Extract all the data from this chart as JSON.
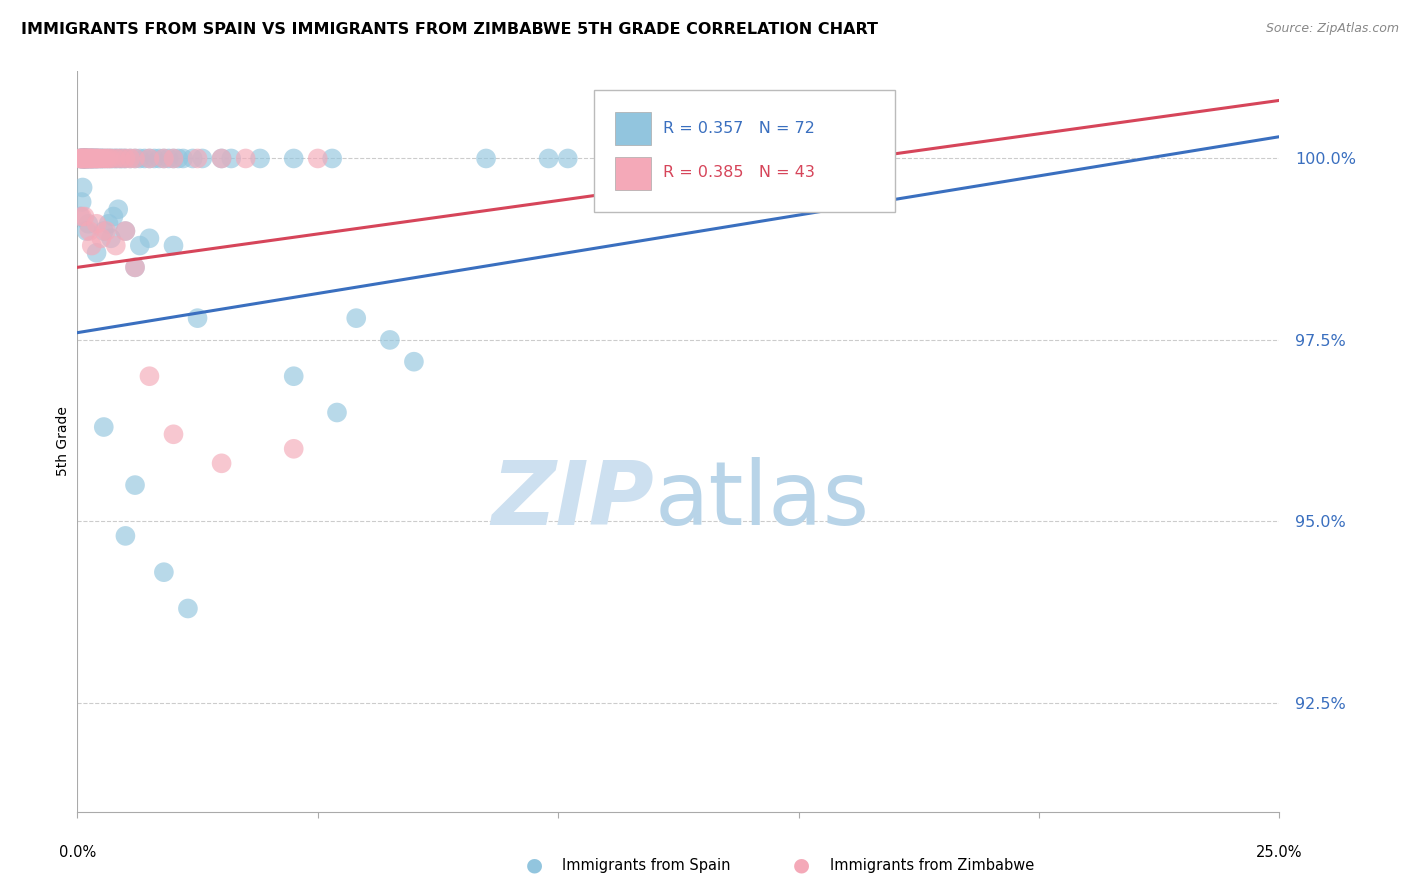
{
  "title": "IMMIGRANTS FROM SPAIN VS IMMIGRANTS FROM ZIMBABWE 5TH GRADE CORRELATION CHART",
  "source": "Source: ZipAtlas.com",
  "ylabel": "5th Grade",
  "yticks": [
    92.5,
    95.0,
    97.5,
    100.0
  ],
  "ytick_labels": [
    "92.5%",
    "95.0%",
    "97.5%",
    "100.0%"
  ],
  "xlim": [
    0.0,
    25.0
  ],
  "ylim": [
    91.0,
    101.2
  ],
  "legend_blue_r": "R = 0.357",
  "legend_blue_n": "N = 72",
  "legend_pink_r": "R = 0.385",
  "legend_pink_n": "N = 43",
  "blue_color": "#92c5de",
  "pink_color": "#f4a9b8",
  "blue_line_color": "#3a6fbf",
  "pink_line_color": "#d6455a",
  "blue_line_x0": 0.0,
  "blue_line_y0": 97.6,
  "blue_line_x1": 25.0,
  "blue_line_y1": 100.3,
  "pink_line_x0": 0.0,
  "pink_line_y0": 98.5,
  "pink_line_x1": 25.0,
  "pink_line_y1": 100.8,
  "spain_x": [
    0.05,
    0.07,
    0.08,
    0.1,
    0.1,
    0.12,
    0.13,
    0.14,
    0.15,
    0.15,
    0.16,
    0.17,
    0.18,
    0.2,
    0.2,
    0.22,
    0.22,
    0.25,
    0.25,
    0.28,
    0.3,
    0.3,
    0.32,
    0.35,
    0.35,
    0.38,
    0.4,
    0.42,
    0.45,
    0.5,
    0.5,
    0.55,
    0.6,
    0.65,
    0.7,
    0.75,
    0.8,
    0.85,
    0.9,
    0.95,
    1.0,
    1.1,
    1.2,
    1.3,
    1.4,
    1.5,
    1.6,
    1.7,
    1.8,
    1.9,
    2.0,
    2.1,
    2.2,
    2.4,
    2.6,
    3.0,
    3.2,
    3.8,
    4.5,
    5.3,
    5.8,
    6.5,
    7.0,
    8.5,
    9.8,
    10.2,
    14.8,
    0.06,
    0.09,
    0.11,
    0.19,
    0.23
  ],
  "spain_y": [
    100.0,
    100.0,
    100.0,
    100.0,
    100.0,
    100.0,
    100.0,
    100.0,
    100.0,
    100.0,
    100.0,
    100.0,
    100.0,
    100.0,
    100.0,
    100.0,
    100.0,
    100.0,
    100.0,
    100.0,
    100.0,
    100.0,
    100.0,
    100.0,
    100.0,
    100.0,
    100.0,
    100.0,
    100.0,
    100.0,
    100.0,
    100.0,
    100.0,
    100.0,
    100.0,
    100.0,
    100.0,
    100.0,
    100.0,
    100.0,
    100.0,
    100.0,
    100.0,
    100.0,
    100.0,
    100.0,
    100.0,
    100.0,
    100.0,
    100.0,
    100.0,
    100.0,
    100.0,
    100.0,
    100.0,
    100.0,
    100.0,
    100.0,
    100.0,
    100.0,
    97.8,
    97.5,
    97.2,
    100.0,
    100.0,
    100.0,
    100.0,
    99.2,
    99.4,
    99.6,
    99.0,
    99.1
  ],
  "spain_outlier_x": [
    0.4,
    0.55,
    0.65,
    0.7,
    0.75,
    0.85,
    1.0,
    1.2,
    1.3,
    1.5,
    2.0,
    2.5,
    4.5,
    5.4
  ],
  "spain_outlier_y": [
    98.7,
    99.0,
    99.1,
    98.9,
    99.2,
    99.3,
    99.0,
    98.5,
    98.8,
    98.9,
    98.8,
    97.8,
    97.0,
    96.5
  ],
  "spain_low_x": [
    0.55,
    1.0,
    1.2,
    1.8,
    2.3
  ],
  "spain_low_y": [
    96.3,
    94.8,
    95.5,
    94.3,
    93.8
  ],
  "zim_x": [
    0.05,
    0.07,
    0.08,
    0.1,
    0.1,
    0.12,
    0.13,
    0.15,
    0.15,
    0.17,
    0.18,
    0.2,
    0.2,
    0.22,
    0.25,
    0.25,
    0.28,
    0.3,
    0.3,
    0.32,
    0.35,
    0.38,
    0.4,
    0.42,
    0.45,
    0.5,
    0.55,
    0.6,
    0.65,
    0.7,
    0.8,
    0.9,
    1.0,
    1.1,
    1.2,
    1.5,
    1.8,
    2.0,
    2.5,
    3.0,
    3.5,
    5.0,
    0.09
  ],
  "zim_y": [
    100.0,
    100.0,
    100.0,
    100.0,
    100.0,
    100.0,
    100.0,
    100.0,
    100.0,
    100.0,
    100.0,
    100.0,
    100.0,
    100.0,
    100.0,
    100.0,
    100.0,
    100.0,
    100.0,
    100.0,
    100.0,
    100.0,
    100.0,
    100.0,
    100.0,
    100.0,
    100.0,
    100.0,
    100.0,
    100.0,
    100.0,
    100.0,
    100.0,
    100.0,
    100.0,
    100.0,
    100.0,
    100.0,
    100.0,
    100.0,
    100.0,
    100.0,
    99.2
  ],
  "zim_outlier_x": [
    0.15,
    0.25,
    0.3,
    0.4,
    0.5,
    0.6,
    0.8,
    1.0,
    1.2,
    1.5,
    2.0,
    3.0,
    4.5
  ],
  "zim_outlier_y": [
    99.2,
    99.0,
    98.8,
    99.1,
    98.9,
    99.0,
    98.8,
    99.0,
    98.5,
    97.0,
    96.2,
    95.8,
    96.0
  ]
}
